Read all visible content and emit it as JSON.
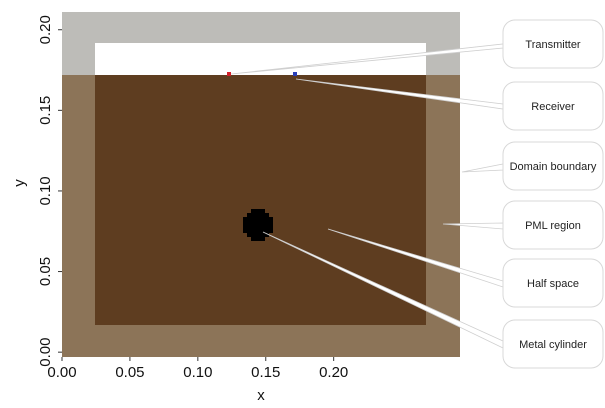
{
  "chart_data": {
    "type": "geometry",
    "x_label": "x",
    "y_label": "y",
    "xlim": [
      0,
      0.293
    ],
    "xticks": [
      {
        "value": 0,
        "label": "0.00"
      },
      {
        "value": 0.05,
        "label": "0.05"
      },
      {
        "value": 0.1,
        "label": "0.10"
      },
      {
        "value": 0.15,
        "label": "0.15"
      },
      {
        "value": 0.2,
        "label": "0.20"
      }
    ],
    "ylim": [
      -0.003,
      0.211
    ],
    "yticks": [
      {
        "value": 0,
        "label": "0.00"
      },
      {
        "value": 0.05,
        "label": "0.05"
      },
      {
        "value": 0.1,
        "label": "0.10"
      },
      {
        "value": 0.15,
        "label": "0.15"
      },
      {
        "value": 0.2,
        "label": "0.20"
      }
    ],
    "annotations": [
      "Transmitter",
      "Receiver",
      "Domain boundary",
      "PML region",
      "Half space",
      "Metal cylinder"
    ]
  }
}
